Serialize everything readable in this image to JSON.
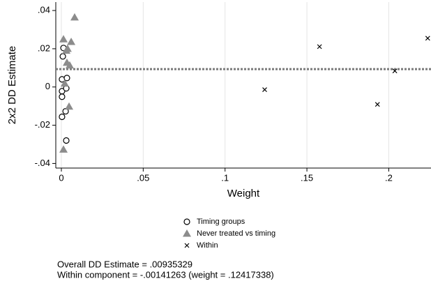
{
  "chart_data": {
    "type": "scatter",
    "y_label": "2x2 DD Estimate",
    "x_label": "Weight",
    "xlim": [
      -0.0034,
      0.2258
    ],
    "ylim": [
      -0.0424,
      0.0444
    ],
    "xticks": [
      0,
      {
        "value": 0.05,
        "label": ".05"
      },
      {
        "value": 0.1,
        "label": ".1"
      },
      {
        "value": 0.15,
        "label": ".15"
      },
      {
        "value": 0.2,
        "label": ".2"
      }
    ],
    "yticks": [
      {
        "value": -0.04,
        "label": "-.04"
      },
      {
        "value": -0.02,
        "label": "-.02"
      },
      0,
      {
        "value": 0.02,
        "label": ".02"
      },
      {
        "value": 0.04,
        "label": ".04"
      }
    ],
    "grid": true,
    "hline": 0.00935329,
    "hline_color": "#7a7a7a",
    "series": [
      {
        "name": "Timing groups",
        "marker": "circle",
        "color": "#000000",
        "x": [
          0.0013,
          0.0009,
          0.0004,
          0.0034,
          0.0004,
          0.003,
          0.0004,
          0.0026,
          0.0004,
          0.003
        ],
        "values": [
          0.0204,
          0.016,
          0.004,
          0.0047,
          -0.0022,
          -0.0007,
          -0.0051,
          -0.0127,
          -0.0156,
          -0.028
        ]
      },
      {
        "name": "Never treated vs timing",
        "marker": "triangle",
        "color": "#8c8c8c",
        "x": [
          0.0081,
          0.0013,
          0.006,
          0.0038,
          0.003,
          0.0034,
          0.0051,
          0.0021,
          0.0047,
          0.0013
        ],
        "values": [
          0.0364,
          0.025,
          0.0236,
          0.02,
          0.019,
          0.0127,
          0.0113,
          0.0018,
          -0.0102,
          -0.0327
        ]
      },
      {
        "name": "Within",
        "marker": "cross",
        "color": "#000000",
        "x": [
          0.1242,
          0.1577,
          0.1931,
          0.2037,
          0.2238
        ],
        "values": [
          -0.0014,
          0.0211,
          -0.0091,
          0.0084,
          0.0255
        ]
      }
    ],
    "notes": [
      "Overall DD Estimate = .00935329",
      "Within component = -.00141263 (weight = .12417338)"
    ]
  }
}
